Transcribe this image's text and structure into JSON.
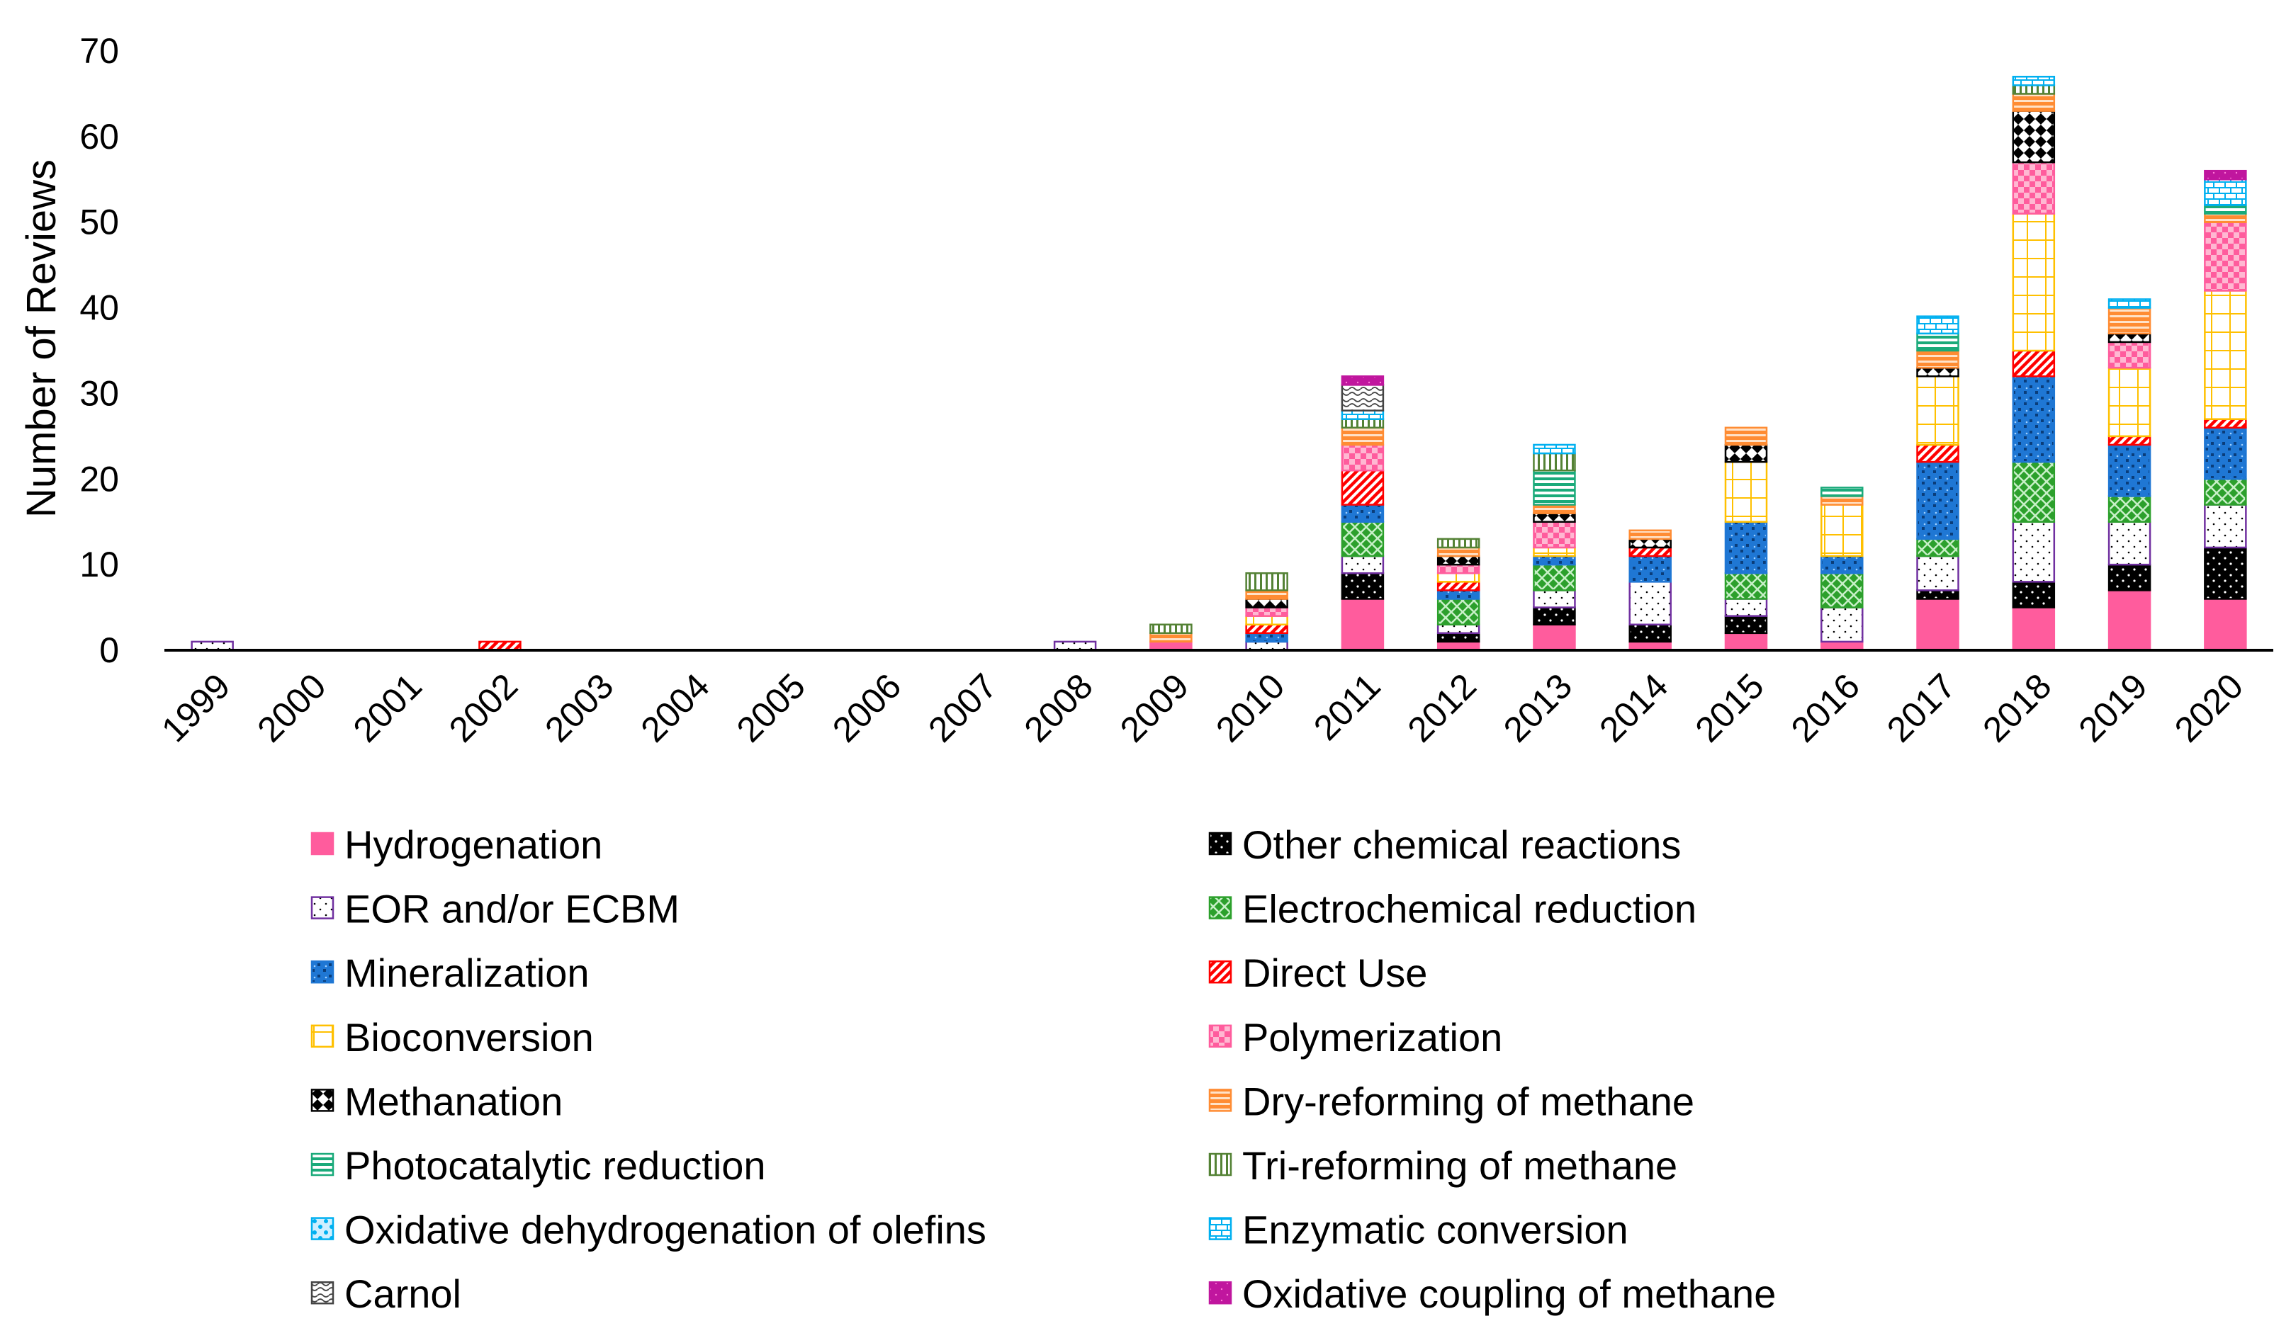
{
  "chart_data": {
    "type": "bar",
    "stacked": true,
    "title": "",
    "xlabel": "",
    "ylabel": "Number of Reviews",
    "ylim": [
      0,
      70
    ],
    "yticks": [
      0,
      10,
      20,
      30,
      40,
      50,
      60,
      70
    ],
    "grid": false,
    "legend_position": "bottom",
    "categories": [
      "1999",
      "2000",
      "2001",
      "2002",
      "2003",
      "2004",
      "2005",
      "2006",
      "2007",
      "2008",
      "2009",
      "2010",
      "2011",
      "2012",
      "2013",
      "2014",
      "2015",
      "2016",
      "2017",
      "2018",
      "2019",
      "2020"
    ],
    "series": [
      {
        "name": "Hydrogenation",
        "color": "#ff5c9d",
        "pattern": "solid",
        "values": [
          0,
          0,
          0,
          0,
          0,
          0,
          0,
          0,
          0,
          0,
          1,
          0,
          6,
          1,
          3,
          1,
          2,
          1,
          6,
          5,
          7,
          6
        ]
      },
      {
        "name": "Other chemical reactions",
        "color": "#000000",
        "pattern": "other",
        "values": [
          0,
          0,
          0,
          0,
          0,
          0,
          0,
          0,
          0,
          0,
          0,
          0,
          3,
          1,
          2,
          2,
          2,
          0,
          1,
          3,
          3,
          6
        ]
      },
      {
        "name": "EOR and/or ECBM",
        "color": "#7030a0",
        "pattern": "dots",
        "values": [
          1,
          0,
          0,
          0,
          0,
          0,
          0,
          0,
          0,
          1,
          0,
          1,
          2,
          1,
          2,
          5,
          2,
          4,
          4,
          7,
          5,
          5
        ]
      },
      {
        "name": "Electrochemical reduction",
        "color": "#2ca02c",
        "pattern": "crosshatch",
        "values": [
          0,
          0,
          0,
          0,
          0,
          0,
          0,
          0,
          0,
          0,
          0,
          0,
          4,
          3,
          3,
          0,
          3,
          4,
          2,
          7,
          3,
          3
        ]
      },
      {
        "name": "Mineralization",
        "color": "#1f77d4",
        "pattern": "checker",
        "values": [
          0,
          0,
          0,
          0,
          0,
          0,
          0,
          0,
          0,
          0,
          0,
          1,
          2,
          1,
          1,
          3,
          6,
          2,
          9,
          10,
          6,
          6
        ]
      },
      {
        "name": "Direct Use",
        "color": "#ff0000",
        "pattern": "diagonal",
        "values": [
          0,
          0,
          0,
          1,
          0,
          0,
          0,
          0,
          0,
          0,
          0,
          1,
          4,
          1,
          0,
          1,
          0,
          0,
          2,
          3,
          1,
          1
        ]
      },
      {
        "name": "Bioconversion",
        "color": "#ffc000",
        "pattern": "grid",
        "values": [
          0,
          0,
          0,
          0,
          0,
          0,
          0,
          0,
          0,
          0,
          0,
          1,
          0,
          1,
          1,
          0,
          7,
          6,
          8,
          16,
          8,
          15
        ]
      },
      {
        "name": "Polymerization",
        "color": "#ff5c9d",
        "pattern": "pinkcheck",
        "values": [
          0,
          0,
          0,
          0,
          0,
          0,
          0,
          0,
          0,
          0,
          0,
          1,
          3,
          1,
          3,
          0,
          0,
          0,
          0,
          6,
          3,
          8
        ]
      },
      {
        "name": "Methanation",
        "color": "#000000",
        "pattern": "bowtie",
        "values": [
          0,
          0,
          0,
          0,
          0,
          0,
          0,
          0,
          0,
          0,
          0,
          1,
          0,
          1,
          1,
          1,
          2,
          0,
          1,
          6,
          1,
          0
        ]
      },
      {
        "name": "Dry-reforming of methane",
        "color": "#ff8c33",
        "pattern": "hstripes",
        "values": [
          0,
          0,
          0,
          0,
          0,
          0,
          0,
          0,
          0,
          0,
          1,
          1,
          2,
          1,
          1,
          1,
          2,
          1,
          2,
          2,
          3,
          1
        ]
      },
      {
        "name": "Photocatalytic reduction",
        "color": "#1aaa7a",
        "pattern": "hlines",
        "values": [
          0,
          0,
          0,
          0,
          0,
          0,
          0,
          0,
          0,
          0,
          0,
          0,
          0,
          0,
          4,
          0,
          0,
          1,
          2,
          0,
          0,
          1
        ]
      },
      {
        "name": "Tri-reforming of methane",
        "color": "#548235",
        "pattern": "vlines",
        "values": [
          0,
          0,
          0,
          0,
          0,
          0,
          0,
          0,
          0,
          0,
          1,
          2,
          1,
          1,
          2,
          0,
          0,
          0,
          0,
          1,
          0,
          0
        ]
      },
      {
        "name": "Oxidative dehydrogenation of olefins",
        "color": "#00b0f0",
        "pattern": "oxdots",
        "values": [
          0,
          0,
          0,
          0,
          0,
          0,
          0,
          0,
          0,
          0,
          0,
          0,
          0,
          0,
          0,
          0,
          0,
          0,
          0,
          0,
          0,
          0
        ]
      },
      {
        "name": "Enzymatic conversion",
        "color": "#00b0f0",
        "pattern": "brick",
        "values": [
          0,
          0,
          0,
          0,
          0,
          0,
          0,
          0,
          0,
          0,
          0,
          0,
          1,
          0,
          1,
          0,
          0,
          0,
          2,
          1,
          1,
          3
        ]
      },
      {
        "name": "Carnol",
        "color": "#444444",
        "pattern": "wave",
        "values": [
          0,
          0,
          0,
          0,
          0,
          0,
          0,
          0,
          0,
          0,
          0,
          0,
          3,
          0,
          0,
          0,
          0,
          0,
          0,
          0,
          0,
          0
        ]
      },
      {
        "name": "Oxidative coupling of methane",
        "color": "#c0169e",
        "pattern": "magenta",
        "values": [
          0,
          0,
          0,
          0,
          0,
          0,
          0,
          0,
          0,
          0,
          0,
          0,
          1,
          0,
          0,
          0,
          0,
          0,
          0,
          0,
          0,
          1
        ]
      }
    ]
  }
}
